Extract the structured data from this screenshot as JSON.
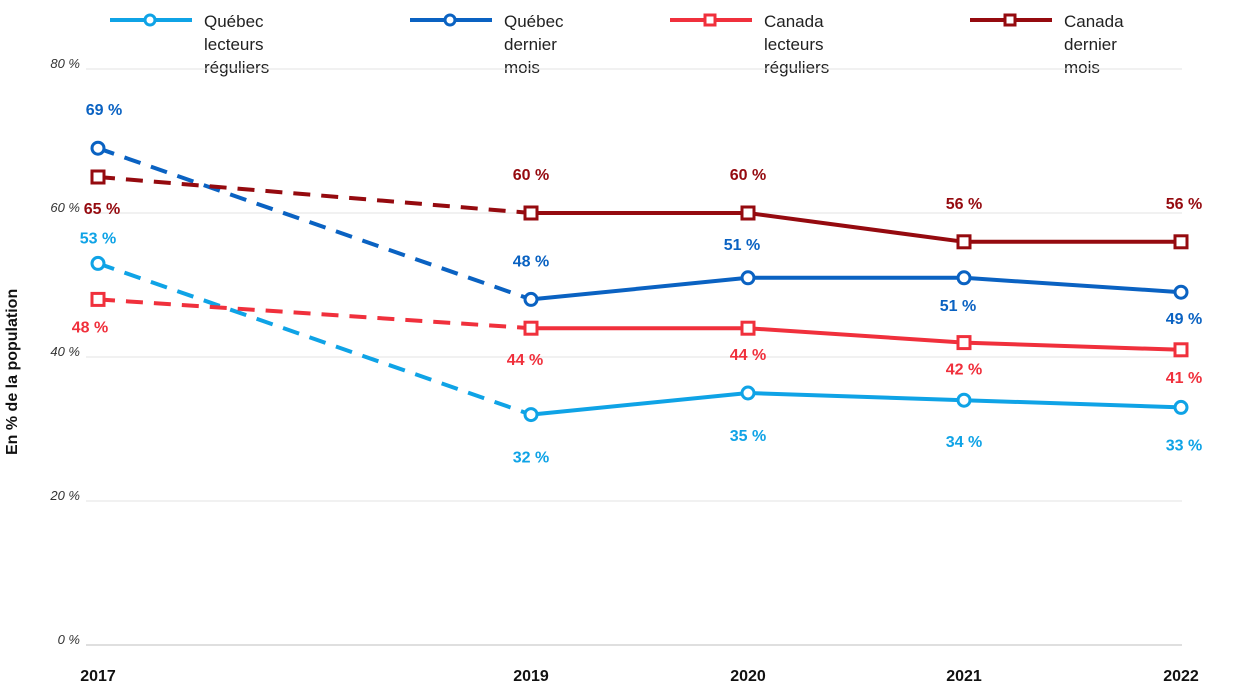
{
  "chart_data": {
    "type": "line",
    "ylabel": "En % de la population",
    "ylim": [
      0,
      80
    ],
    "yticks": [
      "0 %",
      "20 %",
      "40 %",
      "60 %",
      "80 %"
    ],
    "x": [
      "2017",
      "2019",
      "2020",
      "2021",
      "2022"
    ],
    "dashed_segment": "2017-2019",
    "grid": "horizontal",
    "legend_position": "top",
    "series": [
      {
        "name": "Québec\nlecteurs réguliers",
        "color": "#0fa3e6",
        "marker": "circle",
        "values": [
          53,
          32,
          35,
          34,
          33
        ],
        "labels": [
          "53 %",
          "32 %",
          "35 %",
          "34 %",
          "33 %"
        ]
      },
      {
        "name": "Québec\ndernier mois",
        "color": "#0a62c2",
        "marker": "circle",
        "values": [
          69,
          48,
          51,
          51,
          49
        ],
        "labels": [
          "69 %",
          "48 %",
          "51 %",
          "51 %",
          "49 %"
        ]
      },
      {
        "name": "Canada\nlecteurs réguliers",
        "color": "#f0303c",
        "marker": "square",
        "values": [
          48,
          44,
          44,
          42,
          41
        ],
        "labels": [
          "48 %",
          "44 %",
          "44 %",
          "42 %",
          "41 %"
        ]
      },
      {
        "name": "Canada\ndernier mois",
        "color": "#950a0f",
        "marker": "square",
        "values": [
          65,
          60,
          60,
          56,
          56
        ],
        "labels": [
          "65 %",
          "60 %",
          "60 %",
          "56 %",
          "56 %"
        ]
      }
    ]
  }
}
